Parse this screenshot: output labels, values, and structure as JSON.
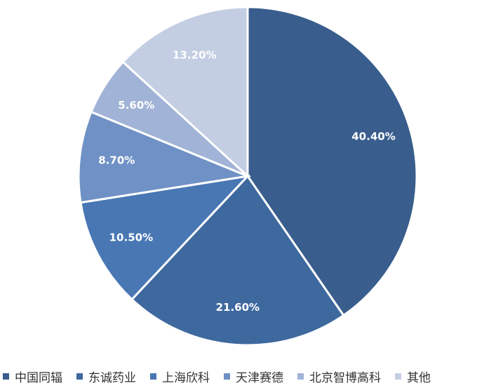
{
  "chart_data": {
    "type": "pie",
    "categories": [
      "中国同辐",
      "东诚药业",
      "上海欣科",
      "天津赛德",
      "北京智博高科",
      "其他"
    ],
    "values": [
      40.4,
      21.6,
      10.5,
      8.7,
      5.6,
      13.2
    ],
    "value_labels": [
      "40.40%",
      "21.60%",
      "10.50%",
      "8.70%",
      "5.60%",
      "13.20%"
    ],
    "colors": [
      "#395d8c",
      "#3e699f",
      "#4877b4",
      "#6f91c5",
      "#a1b3d6",
      "#c3cee3"
    ],
    "legend": "bottom"
  }
}
